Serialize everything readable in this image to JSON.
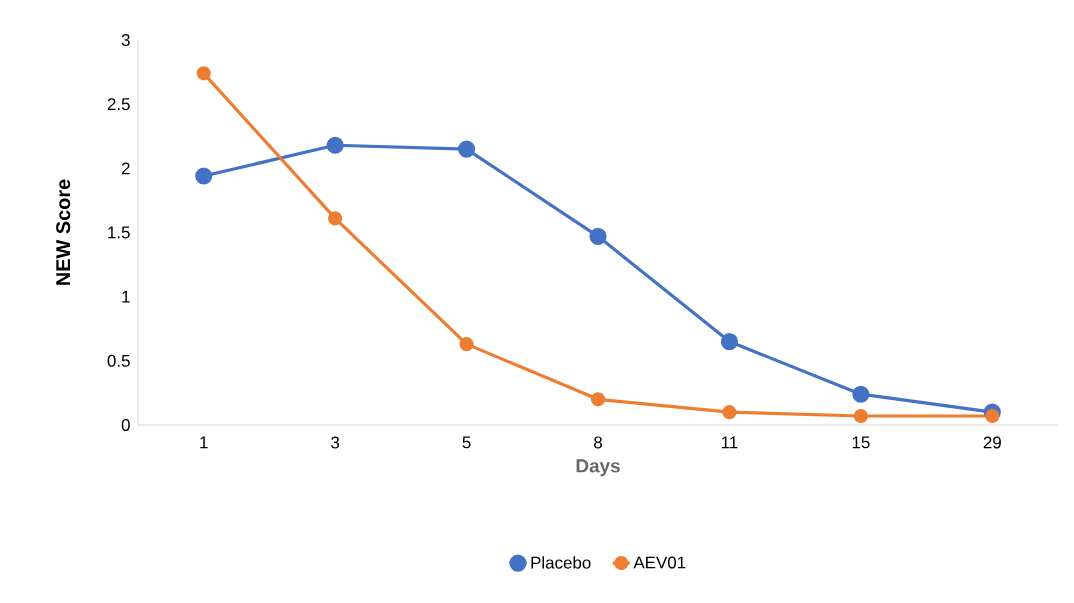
{
  "chart_data": {
    "type": "line",
    "xlabel": "Days",
    "ylabel": "NEW Score",
    "categories": [
      "1",
      "3",
      "5",
      "8",
      "11",
      "15",
      "29"
    ],
    "series": [
      {
        "name": "Placebo",
        "color": "#4472c4",
        "values": [
          1.94,
          2.18,
          2.15,
          1.47,
          0.65,
          0.24,
          0.1
        ]
      },
      {
        "name": "AEV01",
        "color": "#ed7d31",
        "values": [
          2.74,
          1.61,
          0.63,
          0.2,
          0.1,
          0.07,
          0.07
        ]
      }
    ],
    "ylim": [
      0,
      3
    ],
    "yticks": [
      0,
      0.5,
      1,
      1.5,
      2,
      2.5,
      3
    ],
    "legend": "bottom",
    "marker": "circle",
    "line_style": "solid"
  }
}
